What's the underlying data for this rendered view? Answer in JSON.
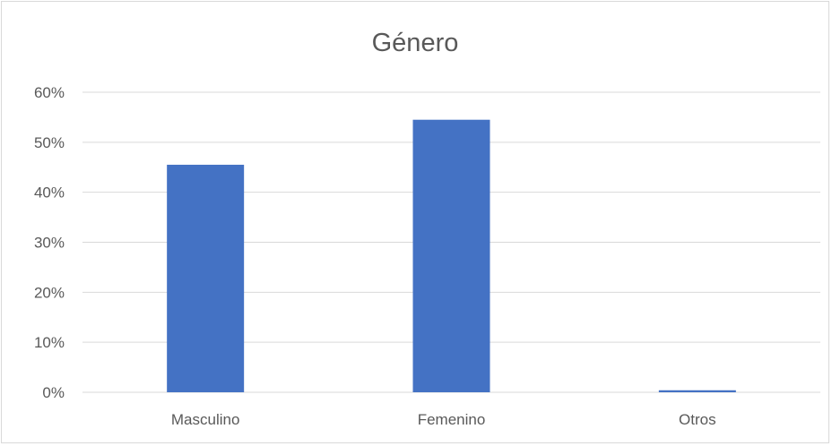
{
  "chart_data": {
    "type": "bar",
    "title": "Género",
    "categories": [
      "Masculino",
      "Femenino",
      "Otros"
    ],
    "values": [
      45.5,
      54.5,
      0.4
    ],
    "ylim": [
      0,
      60
    ],
    "yticks": [
      "0%",
      "10%",
      "20%",
      "30%",
      "40%",
      "50%",
      "60%"
    ],
    "xlabel": "",
    "ylabel": "",
    "grid": true,
    "legend": "none",
    "colors": {
      "bar": "#4472c4",
      "grid": "#d9d9d9",
      "text": "#595959"
    }
  }
}
